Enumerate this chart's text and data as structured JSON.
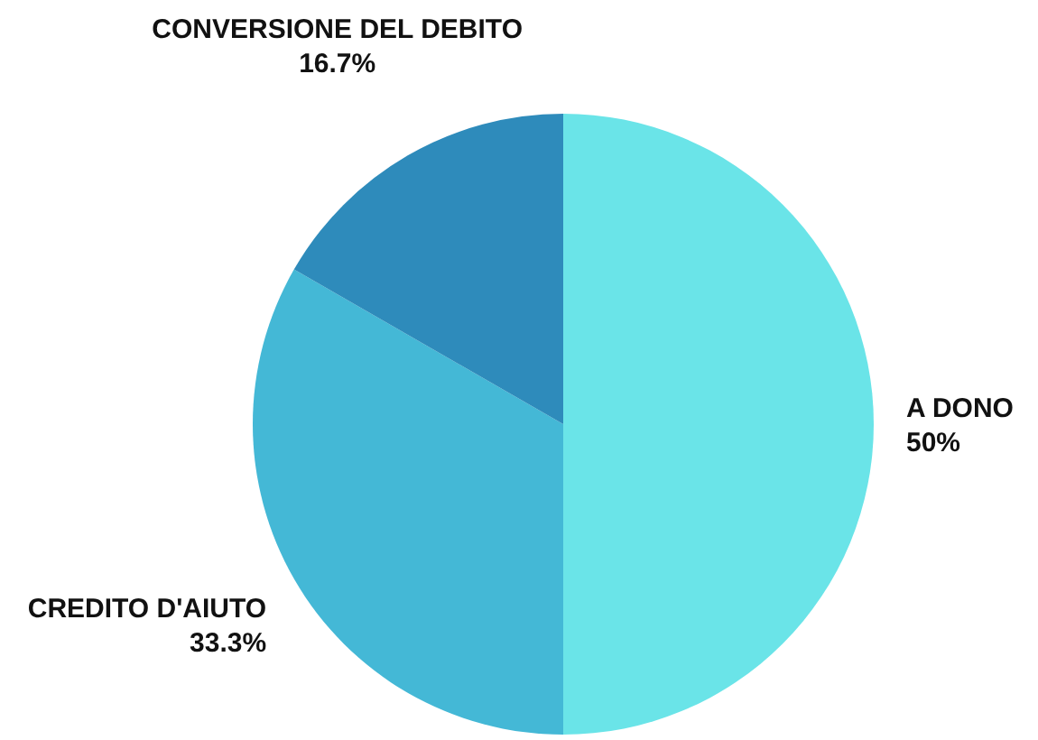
{
  "chart_data": {
    "type": "pie",
    "categories": [
      "A DONO",
      "CREDITO D'AIUTO",
      "CONVERSIONE DEL DEBITO"
    ],
    "values": [
      50,
      33.3,
      16.7
    ],
    "colors": [
      "#6ae4e8",
      "#44b8d6",
      "#2e8bbb"
    ],
    "value_labels": [
      "50%",
      "33.3%",
      "16.7%"
    ]
  }
}
